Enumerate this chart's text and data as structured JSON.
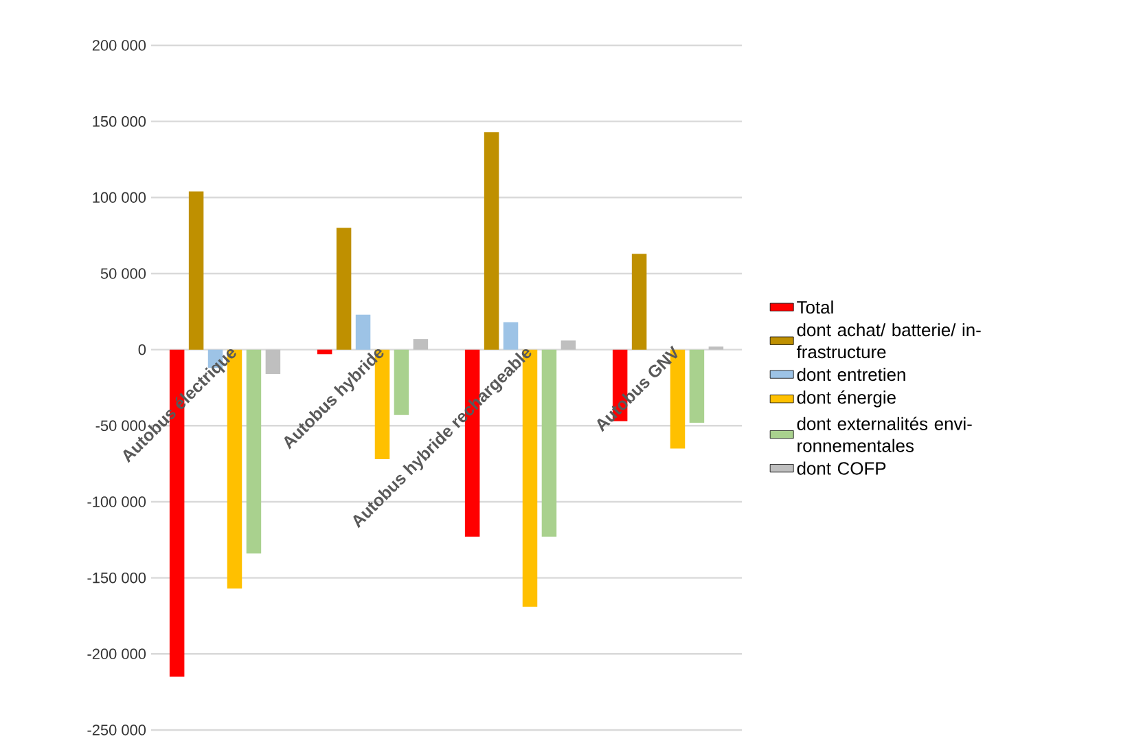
{
  "chart_data": {
    "type": "bar",
    "categories": [
      "Autobus électrique",
      "Autobus hybride",
      "Autobus hybride rechargeable",
      "Autobus GNV"
    ],
    "series": [
      {
        "name": "Total",
        "color": "#ff0000",
        "values": [
          -215000,
          -3000,
          -123000,
          -47000
        ]
      },
      {
        "name": "dont achat/ batterie/ in-frastructure",
        "color": "#bf9000",
        "values": [
          104000,
          80000,
          143000,
          63000
        ]
      },
      {
        "name": "dont entretien",
        "color": "#9dc3e6",
        "values": [
          -12000,
          23000,
          18000,
          0
        ]
      },
      {
        "name": "dont énergie",
        "color": "#ffc000",
        "values": [
          -157000,
          -72000,
          -169000,
          -65000
        ]
      },
      {
        "name": "dont externalités envi-ronnementales",
        "color": "#a9d18e",
        "values": [
          -134000,
          -43000,
          -123000,
          -48000
        ]
      },
      {
        "name": "dont COFP",
        "color": "#bfbfbf",
        "values": [
          -16000,
          7000,
          6000,
          2000
        ]
      }
    ],
    "ylim": [
      -250000,
      200000
    ],
    "yticks": [
      {
        "value": -250000,
        "label": "-250 000"
      },
      {
        "value": -200000,
        "label": "-200 000"
      },
      {
        "value": -150000,
        "label": "-150 000"
      },
      {
        "value": -100000,
        "label": "-100 000"
      },
      {
        "value": -50000,
        "label": "-50 000"
      },
      {
        "value": 0,
        "label": "0"
      },
      {
        "value": 50000,
        "label": "50 000"
      },
      {
        "value": 100000,
        "label": "100 000"
      },
      {
        "value": 150000,
        "label": "150 000"
      },
      {
        "value": 200000,
        "label": "200 000"
      }
    ],
    "grid": "y",
    "legend": "right"
  }
}
